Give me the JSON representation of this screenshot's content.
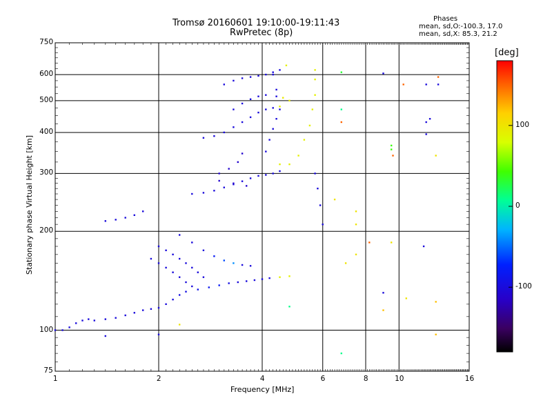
{
  "header": {
    "title_line1": "Tromsø 20160601 19:10:00-19:11:43",
    "title_line2": "RwPretec (8p)"
  },
  "stats": {
    "heading": "Phases",
    "line1": "mean, sd,O:-100.3, 17.0",
    "line2": "mean, sd,X:  85.3, 21.2"
  },
  "colorbar": {
    "title": "[deg]",
    "ticks": [
      "100",
      "0",
      "-100"
    ],
    "tick_values": [
      100,
      0,
      -100
    ],
    "range": [
      -180,
      180
    ]
  },
  "chart_data": {
    "type": "scatter",
    "title": "Tromsø 20160601 19:10:00-19:11:43",
    "subtitle": "RwPretec (8p)",
    "xlabel": "Frequency [MHz]",
    "ylabel": "Stationary phase Virtual Height [km]",
    "xscale": "log",
    "yscale": "log",
    "xlim": [
      1,
      16
    ],
    "ylim": [
      75,
      750
    ],
    "grid": true,
    "xticks": [
      1,
      2,
      4,
      6,
      8,
      10,
      16
    ],
    "xtick_labels": [
      "1",
      "2",
      "4",
      "6",
      "8",
      "10",
      "16"
    ],
    "yticks": [
      75,
      100,
      200,
      300,
      400,
      500,
      600,
      750
    ],
    "ytick_labels": [
      "75",
      "100",
      "200",
      "300",
      "400",
      "500",
      "600",
      "750"
    ],
    "color_scale": {
      "label": "[deg]",
      "min": -180,
      "max": 180,
      "colormap": "rainbow"
    },
    "series": [
      {
        "points": [
          [
            1.0,
            100,
            -100
          ],
          [
            1.05,
            100,
            -100
          ],
          [
            1.1,
            102,
            -100
          ],
          [
            1.15,
            105,
            -100
          ],
          [
            1.2,
            107,
            -100
          ],
          [
            1.25,
            108,
            -100
          ],
          [
            1.3,
            107,
            -100
          ],
          [
            1.4,
            108,
            -100
          ],
          [
            1.5,
            109,
            -100
          ],
          [
            1.6,
            111,
            -100
          ],
          [
            1.7,
            113,
            -100
          ],
          [
            1.8,
            115,
            -100
          ],
          [
            1.9,
            116,
            -100
          ],
          [
            2.0,
            117,
            -100
          ],
          [
            2.1,
            120,
            -100
          ],
          [
            2.2,
            124,
            -100
          ],
          [
            2.3,
            128,
            -95
          ],
          [
            2.4,
            131,
            -95
          ],
          [
            2.6,
            133,
            -90
          ],
          [
            2.8,
            135,
            -85
          ],
          [
            3.0,
            137,
            -80
          ],
          [
            3.2,
            139,
            -95
          ],
          [
            3.4,
            140,
            -100
          ],
          [
            3.6,
            141,
            -100
          ],
          [
            3.8,
            142,
            -100
          ],
          [
            4.0,
            143,
            -100
          ],
          [
            4.2,
            144,
            -100
          ],
          [
            4.5,
            145,
            90
          ],
          [
            4.8,
            146,
            90
          ]
        ]
      },
      {
        "points": [
          [
            1.9,
            165,
            -100
          ],
          [
            2.0,
            160,
            -100
          ],
          [
            2.1,
            155,
            -100
          ],
          [
            2.2,
            150,
            -100
          ],
          [
            2.3,
            145,
            -100
          ],
          [
            2.4,
            140,
            -100
          ],
          [
            2.5,
            136,
            -100
          ],
          [
            2.0,
            180,
            -100
          ],
          [
            2.1,
            175,
            -100
          ],
          [
            2.2,
            170,
            -100
          ],
          [
            2.3,
            165,
            -100
          ],
          [
            2.4,
            160,
            -100
          ],
          [
            2.5,
            155,
            -100
          ],
          [
            2.6,
            150,
            -100
          ],
          [
            2.7,
            145,
            -100
          ],
          [
            2.3,
            195,
            -100
          ],
          [
            2.5,
            185,
            -100
          ],
          [
            2.7,
            175,
            -100
          ],
          [
            2.9,
            168,
            -80
          ],
          [
            3.1,
            163,
            -60
          ],
          [
            3.3,
            160,
            -40
          ],
          [
            3.5,
            158,
            -100
          ],
          [
            3.7,
            157,
            -100
          ]
        ]
      },
      {
        "points": [
          [
            1.4,
            215,
            -100
          ],
          [
            1.5,
            217,
            -100
          ],
          [
            1.6,
            220,
            -100
          ],
          [
            1.7,
            224,
            -100
          ],
          [
            1.8,
            230,
            -100
          ]
        ]
      },
      {
        "points": [
          [
            2.5,
            260,
            -100
          ],
          [
            2.7,
            262,
            -100
          ],
          [
            2.9,
            266,
            -100
          ],
          [
            3.1,
            272,
            -100
          ],
          [
            3.3,
            278,
            -100
          ],
          [
            3.5,
            284,
            -100
          ],
          [
            3.7,
            290,
            -100
          ],
          [
            3.9,
            295,
            -100
          ],
          [
            4.1,
            297,
            -100
          ],
          [
            4.3,
            300,
            -100
          ],
          [
            4.5,
            305,
            -100
          ]
        ]
      },
      {
        "points": [
          [
            3.0,
            300,
            -110
          ],
          [
            3.2,
            310,
            -110
          ],
          [
            3.4,
            325,
            -110
          ],
          [
            3.5,
            345,
            -110
          ],
          [
            3.3,
            280,
            -110
          ],
          [
            3.6,
            275,
            -110
          ],
          [
            3.0,
            285,
            -110
          ]
        ]
      },
      {
        "points": [
          [
            2.7,
            385,
            -100
          ],
          [
            2.9,
            390,
            -100
          ],
          [
            3.1,
            400,
            -100
          ],
          [
            3.3,
            415,
            -100
          ],
          [
            3.5,
            430,
            -100
          ],
          [
            3.7,
            445,
            -100
          ],
          [
            3.9,
            460,
            -100
          ],
          [
            4.1,
            470,
            -100
          ],
          [
            4.3,
            475,
            -100
          ],
          [
            4.5,
            480,
            90
          ]
        ]
      },
      {
        "points": [
          [
            3.3,
            470,
            -100
          ],
          [
            3.5,
            490,
            -100
          ],
          [
            3.7,
            505,
            -100
          ],
          [
            3.9,
            515,
            -100
          ],
          [
            4.1,
            520,
            -100
          ],
          [
            4.4,
            515,
            -100
          ],
          [
            4.6,
            510,
            95
          ],
          [
            4.8,
            500,
            95
          ]
        ]
      },
      {
        "points": [
          [
            3.1,
            560,
            -100
          ],
          [
            3.3,
            575,
            -100
          ],
          [
            3.5,
            585,
            -100
          ],
          [
            3.7,
            590,
            -100
          ],
          [
            3.9,
            595,
            -100
          ],
          [
            4.1,
            600,
            -100
          ],
          [
            4.3,
            610,
            -100
          ],
          [
            4.5,
            620,
            -100
          ],
          [
            4.7,
            640,
            90
          ]
        ]
      },
      {
        "points": [
          [
            4.1,
            350,
            -100
          ],
          [
            4.2,
            380,
            -100
          ],
          [
            4.3,
            410,
            -100
          ],
          [
            4.4,
            440,
            -100
          ],
          [
            4.5,
            470,
            -100
          ],
          [
            4.4,
            540,
            -100
          ],
          [
            4.3,
            600,
            -100
          ]
        ]
      },
      {
        "points": [
          [
            4.5,
            320,
            90
          ],
          [
            4.8,
            320,
            90
          ],
          [
            5.1,
            340,
            90
          ],
          [
            5.3,
            380,
            90
          ],
          [
            5.5,
            420,
            90
          ],
          [
            5.6,
            470,
            90
          ],
          [
            5.7,
            520,
            90
          ],
          [
            5.7,
            580,
            90
          ],
          [
            5.7,
            620,
            90
          ]
        ]
      },
      {
        "points": [
          [
            5.7,
            300,
            -100
          ],
          [
            5.8,
            270,
            -100
          ],
          [
            5.9,
            240,
            -100
          ],
          [
            6.0,
            210,
            -100
          ]
        ]
      },
      {
        "points": [
          [
            6.8,
            610,
            30
          ],
          [
            9.0,
            605,
            -100
          ],
          [
            10.3,
            560,
            150
          ],
          [
            12.0,
            560,
            -100
          ],
          [
            13.0,
            560,
            -100
          ],
          [
            13.0,
            590,
            150
          ],
          [
            12.0,
            430,
            -100
          ],
          [
            12.3,
            440,
            -100
          ],
          [
            12.0,
            395,
            -100
          ],
          [
            9.5,
            355,
            40
          ],
          [
            9.6,
            340,
            150
          ],
          [
            9.5,
            365,
            40
          ],
          [
            12.8,
            340,
            100
          ],
          [
            6.5,
            250,
            100
          ],
          [
            7.5,
            230,
            100
          ],
          [
            7.5,
            210,
            100
          ],
          [
            8.2,
            185,
            150
          ],
          [
            9.5,
            185,
            100
          ],
          [
            11.8,
            180,
            -100
          ],
          [
            7.5,
            170,
            100
          ],
          [
            7.0,
            160,
            100
          ],
          [
            9.0,
            130,
            -100
          ],
          [
            9.0,
            115,
            120
          ],
          [
            10.5,
            125,
            100
          ],
          [
            12.8,
            122,
            120
          ],
          [
            6.8,
            85,
            10
          ],
          [
            12.8,
            97,
            120
          ],
          [
            4.8,
            118,
            10
          ],
          [
            1.4,
            96,
            -100
          ],
          [
            2.0,
            97,
            -100
          ],
          [
            2.3,
            104,
            100
          ],
          [
            6.8,
            470,
            10
          ],
          [
            6.8,
            430,
            150
          ]
        ]
      }
    ]
  }
}
